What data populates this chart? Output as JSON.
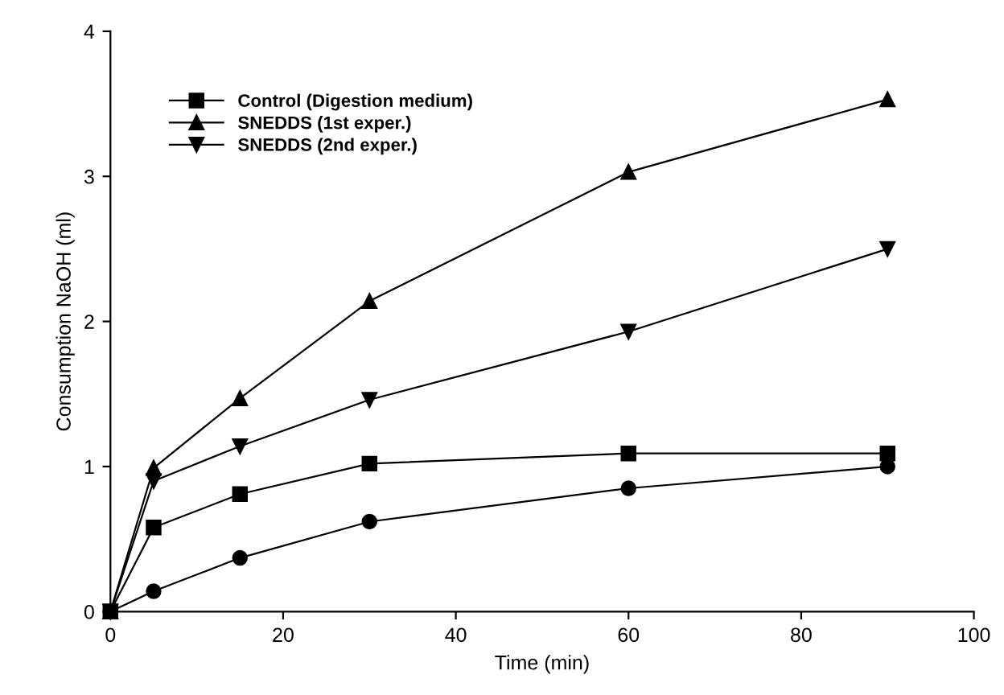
{
  "chart_data": {
    "type": "line",
    "xlabel": "Time (min)",
    "ylabel": "Consumption NaOH (ml)",
    "xlim": [
      0,
      100
    ],
    "xticks": [
      0,
      20,
      40,
      60,
      80,
      100
    ],
    "ylim": [
      0,
      4
    ],
    "yticks": [
      0,
      1,
      2,
      3,
      4
    ],
    "grid": false,
    "legend": "top left",
    "line_style": "solid",
    "series": [
      {
        "name": "Control (Digestion medium)",
        "color": "#000000",
        "marker": "square",
        "x": [
          0,
          5,
          15,
          30,
          60,
          90
        ],
        "values": [
          0,
          0.58,
          0.81,
          1.02,
          1.09,
          1.09
        ]
      },
      {
        "color": "#000000",
        "marker": "circle",
        "x": [
          0,
          5,
          15,
          30,
          60,
          90
        ],
        "values": [
          0,
          0.14,
          0.37,
          0.62,
          0.85,
          1.0
        ]
      },
      {
        "name": "SNEDDS (1st exper.)",
        "color": "#000000",
        "marker": "triangle",
        "x": [
          0,
          5,
          15,
          30,
          60,
          90
        ],
        "values": [
          0,
          0.99,
          1.47,
          2.14,
          3.03,
          3.53
        ]
      },
      {
        "name": "SNEDDS (2nd exper.)",
        "color": "#000000",
        "marker": "triangle_down",
        "x": [
          0,
          5,
          15,
          30,
          60,
          90
        ],
        "values": [
          0,
          0.9,
          1.14,
          1.46,
          1.93,
          2.5
        ]
      }
    ]
  }
}
